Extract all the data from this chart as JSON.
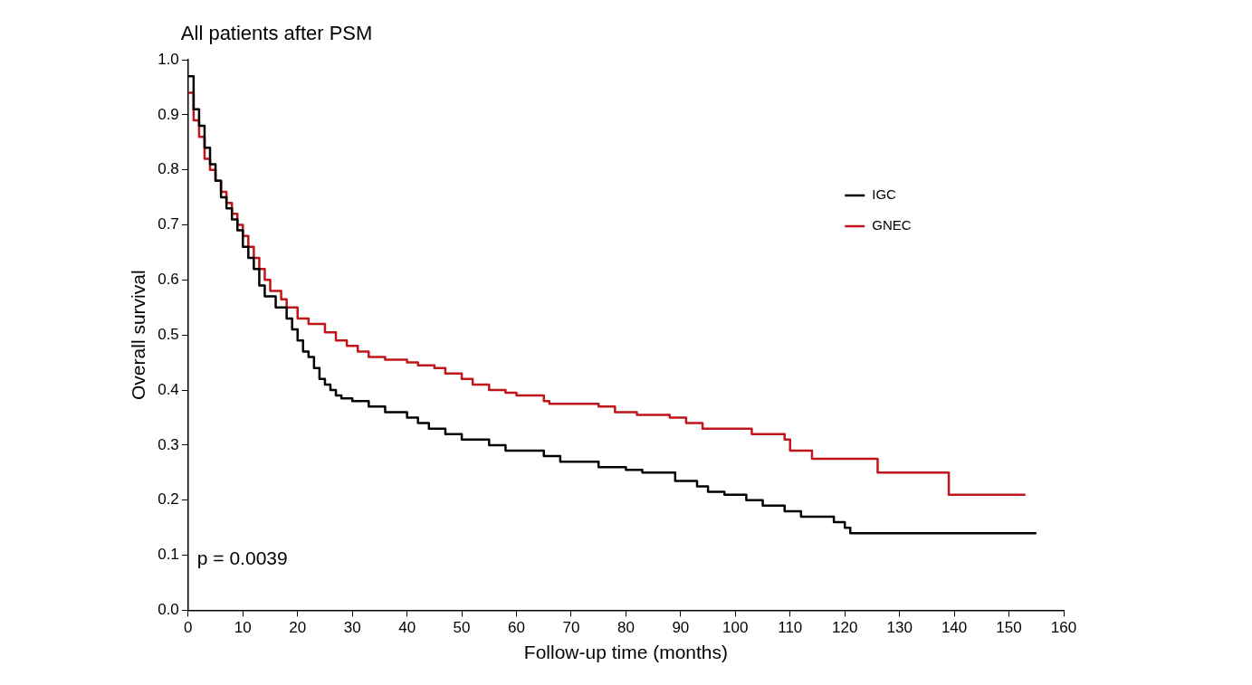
{
  "chart_data": {
    "type": "step",
    "title": "All patients after PSM",
    "xlabel": "Follow-up time (months)",
    "ylabel": "Overall survival",
    "annotations": [
      "p = 0.0039"
    ],
    "xlim": [
      0,
      160
    ],
    "xticks": [
      0,
      10,
      20,
      30,
      40,
      50,
      60,
      70,
      80,
      90,
      100,
      110,
      120,
      130,
      140,
      150,
      160
    ],
    "ylim": [
      0,
      1
    ],
    "yticks": [
      {
        "value": 0,
        "label": "0.0"
      },
      0.1,
      0.2,
      0.3,
      0.4,
      0.5,
      0.6,
      0.7,
      0.8,
      0.9,
      {
        "value": 1,
        "label": "1.0"
      }
    ],
    "grid": false,
    "legend": "top right",
    "marker": "none",
    "line_style": "solid",
    "series": [
      {
        "name": "IGC",
        "color": "#000000",
        "x": [
          0,
          1,
          2,
          3,
          4,
          5,
          6,
          7,
          8,
          9,
          10,
          11,
          12,
          13,
          14,
          16,
          18,
          19,
          20,
          21,
          22,
          23,
          24,
          25,
          26,
          27,
          28,
          30,
          33,
          36,
          40,
          42,
          44,
          47,
          50,
          55,
          58,
          65,
          68,
          75,
          80,
          83,
          89,
          93,
          95,
          98,
          102,
          105,
          109,
          112,
          118,
          120,
          121,
          155
        ],
        "values": [
          0.97,
          0.91,
          0.88,
          0.84,
          0.81,
          0.78,
          0.75,
          0.73,
          0.71,
          0.69,
          0.66,
          0.64,
          0.62,
          0.59,
          0.57,
          0.55,
          0.53,
          0.51,
          0.49,
          0.47,
          0.46,
          0.44,
          0.42,
          0.41,
          0.4,
          0.39,
          0.385,
          0.38,
          0.37,
          0.36,
          0.35,
          0.34,
          0.33,
          0.32,
          0.31,
          0.3,
          0.29,
          0.28,
          0.27,
          0.26,
          0.255,
          0.25,
          0.235,
          0.225,
          0.215,
          0.21,
          0.2,
          0.19,
          0.18,
          0.17,
          0.16,
          0.15,
          0.14,
          0.14
        ]
      },
      {
        "name": "GNEC",
        "color": "#c0161b",
        "x": [
          0,
          1,
          2,
          3,
          4,
          5,
          6,
          7,
          8,
          9,
          10,
          11,
          12,
          13,
          14,
          15,
          17,
          18,
          20,
          22,
          25,
          27,
          29,
          31,
          33,
          36,
          40,
          42,
          45,
          47,
          50,
          52,
          55,
          58,
          60,
          65,
          66,
          75,
          78,
          82,
          88,
          91,
          94,
          103,
          109,
          110,
          114,
          126,
          139,
          153
        ],
        "values": [
          0.94,
          0.89,
          0.86,
          0.82,
          0.8,
          0.78,
          0.76,
          0.74,
          0.72,
          0.7,
          0.68,
          0.66,
          0.64,
          0.62,
          0.6,
          0.58,
          0.565,
          0.55,
          0.53,
          0.52,
          0.505,
          0.49,
          0.48,
          0.47,
          0.46,
          0.455,
          0.45,
          0.445,
          0.44,
          0.43,
          0.42,
          0.41,
          0.4,
          0.395,
          0.39,
          0.38,
          0.375,
          0.37,
          0.36,
          0.355,
          0.35,
          0.34,
          0.33,
          0.32,
          0.31,
          0.29,
          0.275,
          0.25,
          0.21,
          0.21
        ]
      }
    ]
  }
}
